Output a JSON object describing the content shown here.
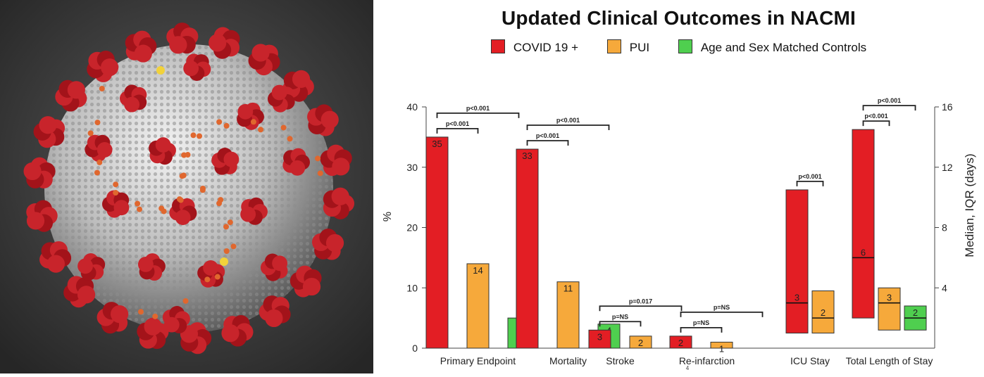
{
  "chart_data": {
    "type": "bar",
    "title": "Updated Clinical Outcomes in NACMI",
    "legend": [
      {
        "name": "COVID 19 +",
        "color": "#e31e24"
      },
      {
        "name": "PUI",
        "color": "#f6a93b"
      },
      {
        "name": "Age and Sex Matched Controls",
        "color": "#4fcf4f"
      }
    ],
    "legend_position": "top",
    "ylabel_left": "%",
    "ylabel_right": "Median, IQR (days)",
    "ylim_left": [
      0,
      40
    ],
    "yticks_left": [
      0,
      10,
      20,
      30,
      40
    ],
    "ylim_right": [
      0,
      16
    ],
    "yticks_right": [
      4,
      8,
      12,
      16
    ],
    "grid": false,
    "percent_groups": [
      {
        "category": "Primary Endpoint",
        "values": [
          35,
          14,
          5
        ],
        "labels": [
          "35",
          "14",
          "5"
        ],
        "brackets": [
          {
            "text": "p<0.001",
            "from": 0,
            "to": 1,
            "level": 1
          },
          {
            "text": "p<0.001",
            "from": 0,
            "to": 2,
            "level": 2
          }
        ]
      },
      {
        "category": "Mortality",
        "values": [
          33,
          11,
          4
        ],
        "labels": [
          "33",
          "11",
          "4"
        ],
        "brackets": [
          {
            "text": "p<0.001",
            "from": 0,
            "to": 1,
            "level": 1
          },
          {
            "text": "p<0.001",
            "from": 0,
            "to": 2,
            "level": 2
          }
        ]
      },
      {
        "category": "Stroke",
        "values": [
          3,
          2
        ],
        "labels": [
          "3",
          "2"
        ],
        "brackets": [
          {
            "text": "p=NS",
            "from": 0,
            "to": 1,
            "level": 1
          },
          {
            "text": "p=0.017",
            "from": 0,
            "to": 2,
            "level": 2
          }
        ]
      },
      {
        "category": "Re-infarction",
        "values": [
          2,
          1
        ],
        "labels": [
          "2",
          "1"
        ],
        "brackets": [
          {
            "text": "p=NS",
            "from": 0,
            "to": 1,
            "level": 1
          },
          {
            "text": "p=NS",
            "from": 0,
            "to": 2,
            "level": 2
          }
        ]
      }
    ],
    "days_groups": [
      {
        "category": "ICU Stay",
        "boxes": [
          {
            "median": 3,
            "q1": 1,
            "q3": 10.5,
            "label": "3"
          },
          {
            "median": 2,
            "q1": 1,
            "q3": 3.8,
            "label": "2"
          }
        ],
        "brackets": [
          {
            "text": "p<0.001",
            "from": 0,
            "to": 1,
            "level": 1
          }
        ]
      },
      {
        "category": "Total Length of Stay",
        "boxes": [
          {
            "median": 6,
            "q1": 2,
            "q3": 14.5,
            "label": "6"
          },
          {
            "median": 3,
            "q1": 1.2,
            "q3": 4,
            "label": "3"
          },
          {
            "median": 2,
            "q1": 1.2,
            "q3": 2.8,
            "label": "2"
          }
        ],
        "brackets": [
          {
            "text": "p<0.001",
            "from": 0,
            "to": 1,
            "level": 1
          },
          {
            "text": "p<0.001",
            "from": 0,
            "to": 2,
            "level": 2
          }
        ]
      }
    ],
    "footnote": "4"
  }
}
